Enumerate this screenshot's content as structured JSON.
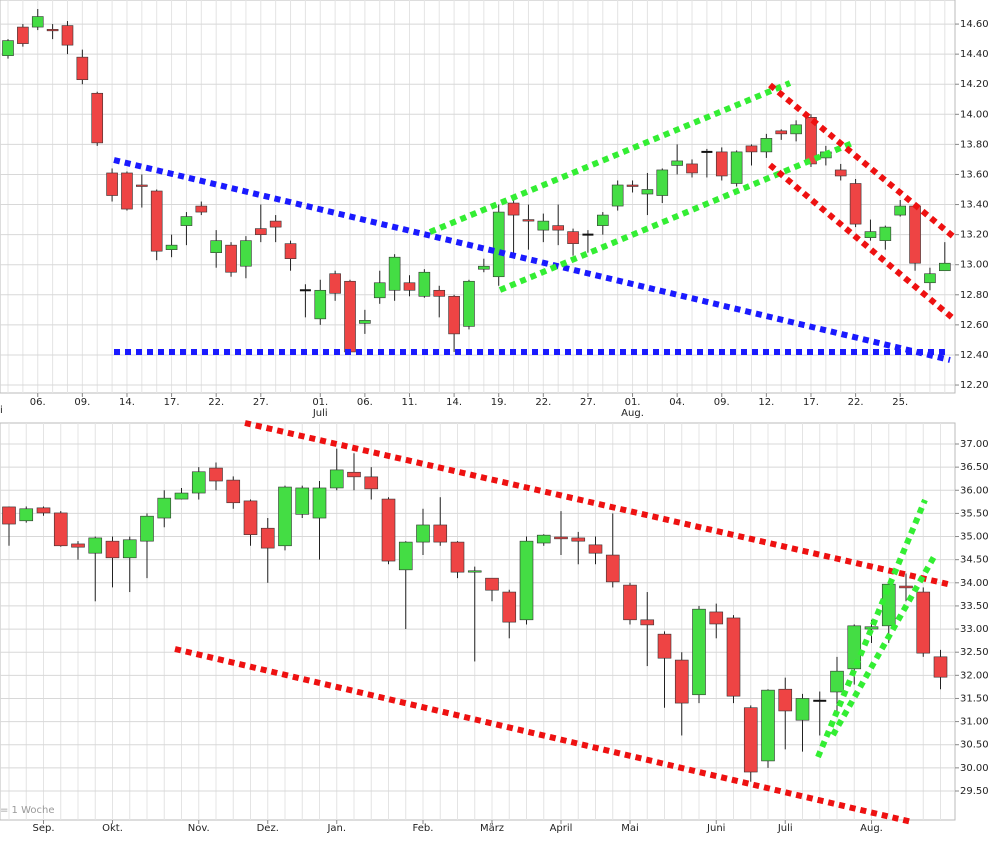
{
  "chart_data": [
    {
      "type": "candlestick",
      "annotation": "i",
      "categories": [
        null,
        null,
        "06.",
        null,
        null,
        "09.",
        null,
        null,
        "14.",
        null,
        null,
        "17.",
        null,
        null,
        "22.",
        null,
        null,
        "27.",
        null,
        null,
        null,
        "01.\nJuli",
        null,
        null,
        "06.",
        null,
        null,
        "11.",
        null,
        null,
        "14.",
        null,
        null,
        "19.",
        null,
        null,
        "22.",
        null,
        null,
        "27.",
        null,
        null,
        "01.\nAug.",
        null,
        null,
        "04.",
        null,
        null,
        "09.",
        null,
        null,
        "12.",
        null,
        null,
        "17.",
        null,
        null,
        "22.",
        null,
        null,
        "25.",
        null,
        null,
        null
      ],
      "open": [
        14390,
        14580,
        14580,
        14565,
        14590,
        14380,
        14140,
        13610,
        13610,
        13530,
        13490,
        13100,
        13260,
        13390,
        13080,
        13130,
        12990,
        13240,
        13290,
        13140,
        12830,
        12640,
        12940,
        12890,
        12610,
        12780,
        12830,
        12880,
        12790,
        12830,
        12790,
        12590,
        12970,
        12920,
        13410,
        13300,
        13230,
        13260,
        13220,
        13200,
        13260,
        13390,
        13530,
        13470,
        13460,
        13660,
        13670,
        13750,
        13750,
        13540,
        13790,
        13750,
        13890,
        13870,
        13980,
        13710,
        13630,
        13540,
        13180,
        13160,
        13330,
        13390,
        12880,
        12960
      ],
      "high": [
        14500,
        14600,
        14700,
        14600,
        14620,
        14430,
        14150,
        13640,
        13620,
        13600,
        13500,
        13200,
        13350,
        13420,
        13230,
        13150,
        13190,
        13400,
        13330,
        13160,
        12870,
        12900,
        12960,
        12900,
        12700,
        12960,
        13070,
        12930,
        12970,
        12860,
        12800,
        12900,
        13040,
        13400,
        13450,
        13400,
        13340,
        13400,
        13240,
        13230,
        13350,
        13560,
        13560,
        13610,
        13640,
        13800,
        13700,
        13770,
        13780,
        13760,
        13800,
        13870,
        13900,
        13960,
        14000,
        13790,
        13670,
        13570,
        13300,
        13260,
        13430,
        13400,
        12980,
        13150
      ],
      "low": [
        14370,
        14450,
        14560,
        14500,
        14400,
        14200,
        13790,
        13420,
        13360,
        13380,
        13030,
        13050,
        13130,
        13330,
        12980,
        12920,
        12910,
        13150,
        13150,
        12960,
        12650,
        12600,
        12760,
        12400,
        12540,
        12740,
        12760,
        12790,
        12780,
        12650,
        12420,
        12570,
        12950,
        12860,
        13080,
        13100,
        13150,
        13130,
        13060,
        13080,
        13200,
        13360,
        13480,
        13330,
        13410,
        13600,
        13580,
        13580,
        13560,
        13520,
        13660,
        13710,
        13830,
        13820,
        13650,
        13660,
        13560,
        13250,
        13160,
        13100,
        13320,
        12960,
        12830,
        12960
      ],
      "close": [
        14490,
        14470,
        14650,
        14555,
        14460,
        14230,
        13810,
        13460,
        13370,
        13520,
        13090,
        13130,
        13320,
        13350,
        13160,
        12950,
        13160,
        13200,
        13250,
        13040,
        12830,
        12830,
        12810,
        12420,
        12630,
        12880,
        13050,
        12830,
        12950,
        12790,
        12540,
        12890,
        12990,
        13350,
        13330,
        13290,
        13290,
        13230,
        13140,
        13200,
        13330,
        13530,
        13520,
        13500,
        13630,
        13690,
        13610,
        13750,
        13590,
        13750,
        13750,
        13840,
        13870,
        13930,
        13670,
        13750,
        13590,
        13270,
        13220,
        13250,
        13390,
        13010,
        12940,
        13010
      ],
      "ylim": [
        12147,
        14760
      ],
      "yticks": [
        {
          "value": 12200,
          "label": "12.200"
        },
        {
          "value": 12400,
          "label": "12.400"
        },
        {
          "value": 12600,
          "label": "12.600"
        },
        {
          "value": 12800,
          "label": "12.800"
        },
        {
          "value": 13000,
          "label": "13.000"
        },
        {
          "value": 13200,
          "label": "13.200"
        },
        {
          "value": 13400,
          "label": "13.400"
        },
        {
          "value": 13600,
          "label": "13.600"
        },
        {
          "value": 13800,
          "label": "13.800"
        },
        {
          "value": 14000,
          "label": "14.000"
        },
        {
          "value": 14200,
          "label": "14.200"
        },
        {
          "value": 14400,
          "label": "14.400"
        },
        {
          "value": 14600,
          "label": "14.600"
        }
      ],
      "up_color": "#44dd44",
      "down_color": "#ee4444",
      "grid": true
    },
    {
      "type": "candlestick",
      "note": "= 1 Woche",
      "categories": [
        null,
        null,
        "Sep.",
        null,
        null,
        null,
        "Okt.",
        null,
        null,
        null,
        null,
        "Nov.",
        null,
        null,
        null,
        "Dez.",
        null,
        null,
        null,
        "Jan.",
        null,
        null,
        null,
        null,
        "Feb.",
        null,
        null,
        null,
        "März",
        null,
        null,
        null,
        "April",
        null,
        null,
        null,
        "Mai",
        null,
        null,
        null,
        null,
        "Juni",
        null,
        null,
        null,
        "Juli",
        null,
        null,
        null,
        null,
        "Aug.",
        null,
        null,
        null,
        null
      ],
      "open": [
        35640,
        35340,
        35620,
        35510,
        34840,
        34640,
        34900,
        34540,
        34900,
        35400,
        35810,
        35940,
        36480,
        36220,
        35770,
        35180,
        34800,
        35480,
        35400,
        36050,
        36390,
        36290,
        35810,
        34280,
        34880,
        35250,
        34880,
        34230,
        34100,
        33800,
        33200,
        34860,
        34990,
        34970,
        34820,
        34600,
        33950,
        33200,
        32890,
        32330,
        31580,
        33370,
        33240,
        31300,
        30150,
        31700,
        31030,
        31450,
        31640,
        32140,
        33000,
        33070,
        33930,
        33800,
        32400
      ],
      "high": [
        35650,
        35650,
        35650,
        35550,
        34900,
        35000,
        35000,
        35000,
        35500,
        36000,
        36050,
        36500,
        36600,
        36300,
        35800,
        35400,
        36100,
        36100,
        36200,
        36900,
        36800,
        36500,
        35850,
        34900,
        35600,
        35850,
        34900,
        34350,
        34100,
        33850,
        35000,
        35050,
        35550,
        35100,
        35000,
        35500,
        34000,
        33800,
        32950,
        32500,
        33500,
        33550,
        33300,
        31350,
        31700,
        31950,
        31600,
        31650,
        32400,
        33100,
        33200,
        34000,
        34200,
        33900,
        32550
      ],
      "low": [
        34800,
        35300,
        35450,
        34780,
        34500,
        33600,
        33900,
        33800,
        34100,
        35200,
        35800,
        35800,
        36000,
        35600,
        34800,
        34000,
        34700,
        35400,
        34500,
        36000,
        36000,
        35800,
        34400,
        33000,
        34600,
        34800,
        34100,
        32300,
        33600,
        32800,
        33100,
        34800,
        34600,
        34400,
        34400,
        33900,
        33100,
        32200,
        31300,
        30700,
        31400,
        32800,
        31400,
        29700,
        30000,
        30400,
        30350,
        30700,
        31200,
        31800,
        32700,
        32700,
        33600,
        32400,
        31700
      ],
      "close": [
        35270,
        35600,
        35510,
        34800,
        34770,
        34970,
        34540,
        34930,
        35440,
        35830,
        35940,
        36400,
        36200,
        35730,
        35040,
        34750,
        36070,
        36050,
        36050,
        36440,
        36290,
        36030,
        34470,
        34880,
        35250,
        34880,
        34230,
        34260,
        33840,
        33150,
        34900,
        35030,
        34950,
        34900,
        34640,
        34020,
        33200,
        33090,
        32370,
        31400,
        33430,
        33110,
        31550,
        29910,
        31680,
        31230,
        31500,
        31450,
        32090,
        33070,
        33050,
        33970,
        33890,
        32480,
        31960
      ],
      "ylim": [
        28873,
        37454
      ],
      "yticks": [
        {
          "value": 29500,
          "label": "29.500"
        },
        {
          "value": 30000,
          "label": "30.000"
        },
        {
          "value": 30500,
          "label": "30.500"
        },
        {
          "value": 31000,
          "label": "31.000"
        },
        {
          "value": 31500,
          "label": "31.500"
        },
        {
          "value": 32000,
          "label": "32.000"
        },
        {
          "value": 32500,
          "label": "32.500"
        },
        {
          "value": 33000,
          "label": "33.000"
        },
        {
          "value": 33500,
          "label": "33.500"
        },
        {
          "value": 34000,
          "label": "34.000"
        },
        {
          "value": 34500,
          "label": "34.500"
        },
        {
          "value": 35000,
          "label": "35.000"
        },
        {
          "value": 35500,
          "label": "35.500"
        },
        {
          "value": 36000,
          "label": "36.000"
        },
        {
          "value": 36500,
          "label": "36.500"
        },
        {
          "value": 37000,
          "label": "37.000"
        }
      ],
      "up_color": "#44dd44",
      "down_color": "#ee4444",
      "grid": true
    }
  ]
}
